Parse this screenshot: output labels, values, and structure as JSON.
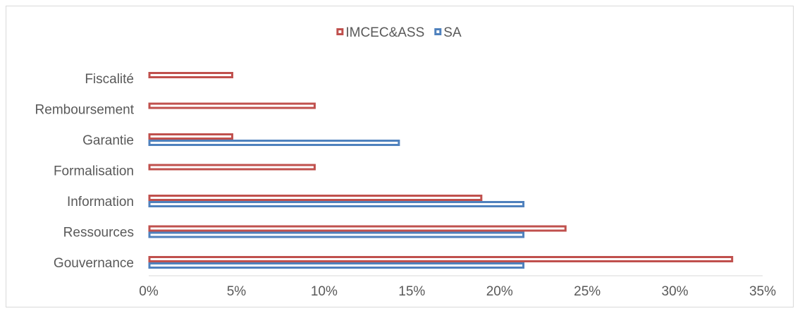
{
  "chart_data": {
    "type": "bar",
    "orientation": "horizontal",
    "categories": [
      "Gouvernance",
      "Ressources",
      "Information",
      "Formalisation",
      "Garantie",
      "Remboursement",
      "Fiscalité"
    ],
    "series": [
      {
        "name": "IMCEC&ASS",
        "color": "#c0504d",
        "values": [
          33.3,
          23.8,
          19.0,
          9.5,
          4.8,
          9.5,
          4.8
        ]
      },
      {
        "name": "SA",
        "color": "#4f81bd",
        "values": [
          21.4,
          21.4,
          21.4,
          0,
          14.3,
          0,
          0
        ]
      }
    ],
    "xlim": [
      0,
      35
    ],
    "xticks": [
      0,
      5,
      10,
      15,
      20,
      25,
      30,
      35
    ],
    "xtick_labels": [
      "0%",
      "5%",
      "10%",
      "15%",
      "20%",
      "25%",
      "30%",
      "35%"
    ],
    "legend": {
      "placement": "top-center"
    },
    "grid": false,
    "title": "",
    "xlabel": "",
    "ylabel": ""
  }
}
